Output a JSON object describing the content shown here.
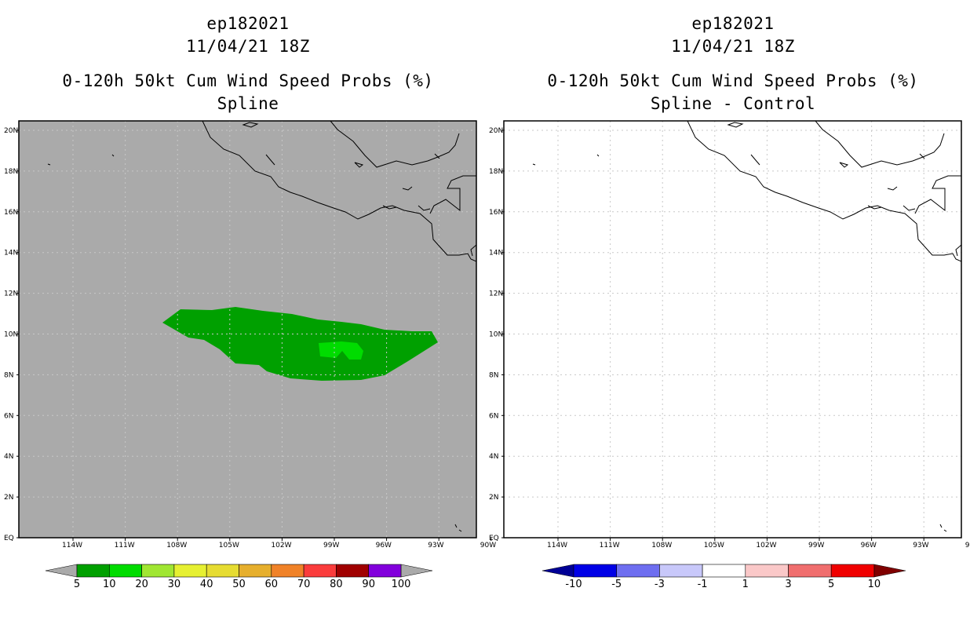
{
  "panels": {
    "left": {
      "storm_id": "ep182021",
      "datetime": "11/04/21 18Z",
      "product": "0-120h 50kt Cum Wind Speed Probs (%)",
      "method": "Spline"
    },
    "right": {
      "storm_id": "ep182021",
      "datetime": "11/04/21 18Z",
      "product": "0-120h 50kt Cum Wind Speed Probs (%)",
      "method": "Spline - Control"
    }
  },
  "map": {
    "lat_ticks": [
      "EQ",
      "2N",
      "4N",
      "6N",
      "8N",
      "10N",
      "12N",
      "14N",
      "16N",
      "18N",
      "20N"
    ],
    "lon_ticks": [
      "114W",
      "111W",
      "108W",
      "105W",
      "102W",
      "99W",
      "96W",
      "93W",
      "90W"
    ],
    "background_left": "#aaaaaa",
    "background_right": "#ffffff"
  },
  "colorbar_left": {
    "labels": [
      "5",
      "10",
      "20",
      "30",
      "40",
      "50",
      "60",
      "70",
      "80",
      "90",
      "100"
    ],
    "colors": [
      "#00a000",
      "#00dc00",
      "#a0e632",
      "#e6f032",
      "#e6dc32",
      "#e6af2d",
      "#f08228",
      "#fa3c3c",
      "#a00000",
      "#8200dc"
    ],
    "low_end_color": "#aaaaaa",
    "high_end_color": "#aaaaaa"
  },
  "colorbar_right": {
    "labels": [
      "-10",
      "-5",
      "-3",
      "-1",
      "1",
      "3",
      "5",
      "10"
    ],
    "colors": [
      "#0000e6",
      "#6e6ef0",
      "#c8c8fa",
      "#ffffff",
      "#fac8c8",
      "#f06e6e",
      "#f00000"
    ],
    "low_end_color": "#000096",
    "high_end_color": "#800000"
  },
  "probability_field": {
    "outer_color": "#00a000",
    "inner_color": "#00dc00"
  }
}
